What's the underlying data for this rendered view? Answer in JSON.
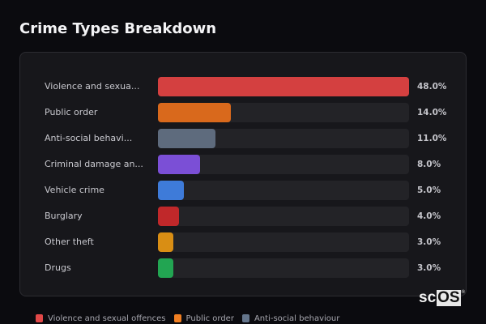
{
  "header": {
    "title": "Crime Types Breakdown"
  },
  "chart_data": {
    "type": "bar",
    "orientation": "horizontal",
    "title": "Crime Types Breakdown",
    "xlabel": "",
    "ylabel": "",
    "categories": [
      "Violence and sexual offences",
      "Public order",
      "Anti-social behaviour",
      "Criminal damage and arson",
      "Vehicle crime",
      "Burglary",
      "Other theft",
      "Drugs"
    ],
    "display_labels": [
      "Violence and sexua...",
      "Public order",
      "Anti-social behavi...",
      "Criminal damage an...",
      "Vehicle crime",
      "Burglary",
      "Other theft",
      "Drugs"
    ],
    "values": [
      48.0,
      14.0,
      11.0,
      8.0,
      5.0,
      4.0,
      3.0,
      3.0
    ],
    "value_labels": [
      "48.0%",
      "14.0%",
      "11.0%",
      "8.0%",
      "5.0%",
      "4.0%",
      "3.0%",
      "3.0%"
    ],
    "colors": [
      "#d44040",
      "#d9691c",
      "#5e6b7d",
      "#7b4fd6",
      "#3e7bd9",
      "#c0282a",
      "#d98e14",
      "#22a552"
    ],
    "scale_max": 48.0,
    "grid": false,
    "legend": {
      "position": "bottom",
      "entries": [
        {
          "label": "Violence and sexual offences",
          "color": "#e14848"
        },
        {
          "label": "Public order",
          "color": "#f07f22"
        },
        {
          "label": "Anti-social behaviour",
          "color": "#64758c"
        }
      ]
    }
  },
  "rows": [
    {
      "label": "Violence and sexua...",
      "value": "48.0%"
    },
    {
      "label": "Public order",
      "value": "14.0%"
    },
    {
      "label": "Anti-social behavi...",
      "value": "11.0%"
    },
    {
      "label": "Criminal damage an...",
      "value": "8.0%"
    },
    {
      "label": "Vehicle crime",
      "value": "5.0%"
    },
    {
      "label": "Burglary",
      "value": "4.0%"
    },
    {
      "label": "Other theft",
      "value": "3.0%"
    },
    {
      "label": "Drugs",
      "value": "3.0%"
    }
  ],
  "legend": [
    {
      "label": "Violence and sexual offences"
    },
    {
      "label": "Public order"
    },
    {
      "label": "Anti-social behaviour"
    }
  ],
  "watermark": {
    "left": "sc",
    "boxed": "OS",
    "mark": "®"
  }
}
